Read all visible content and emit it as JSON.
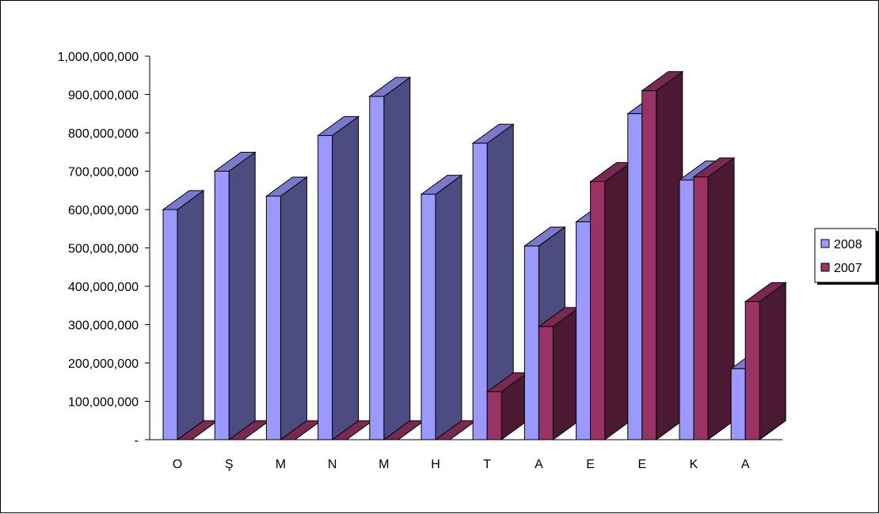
{
  "chart_data": {
    "type": "bar",
    "title": "",
    "xlabel": "",
    "ylabel": "",
    "categories": [
      "O",
      "Ş",
      "M",
      "N",
      "M",
      "H",
      "T",
      "A",
      "E",
      "E",
      "K",
      "A"
    ],
    "series": [
      {
        "name": "2008",
        "values": [
          600000000,
          700000000,
          635000000,
          793000000,
          895000000,
          640000000,
          773000000,
          505000000,
          568000000,
          850000000,
          677000000,
          185000000
        ],
        "color": "#9999ff",
        "side_color": "#4c4c80",
        "top_color": "#7a7acc"
      },
      {
        "name": "2007",
        "values": [
          0,
          0,
          0,
          0,
          0,
          0,
          125000000,
          295000000,
          673000000,
          910000000,
          685000000,
          360000000
        ],
        "color": "#993366",
        "side_color": "#4c1933",
        "top_color": "#7a2952"
      }
    ],
    "ylim": [
      0,
      1000000000
    ],
    "yticks": [
      0,
      100000000,
      200000000,
      300000000,
      400000000,
      500000000,
      600000000,
      700000000,
      800000000,
      900000000,
      1000000000
    ],
    "ytick_labels": [
      "-",
      "100,000,000",
      "200,000,000",
      "300,000,000",
      "400,000,000",
      "500,000,000",
      "600,000,000",
      "700,000,000",
      "800,000,000",
      "900,000,000",
      "1,000,000,000"
    ],
    "grid": false,
    "legend_position": "right"
  }
}
